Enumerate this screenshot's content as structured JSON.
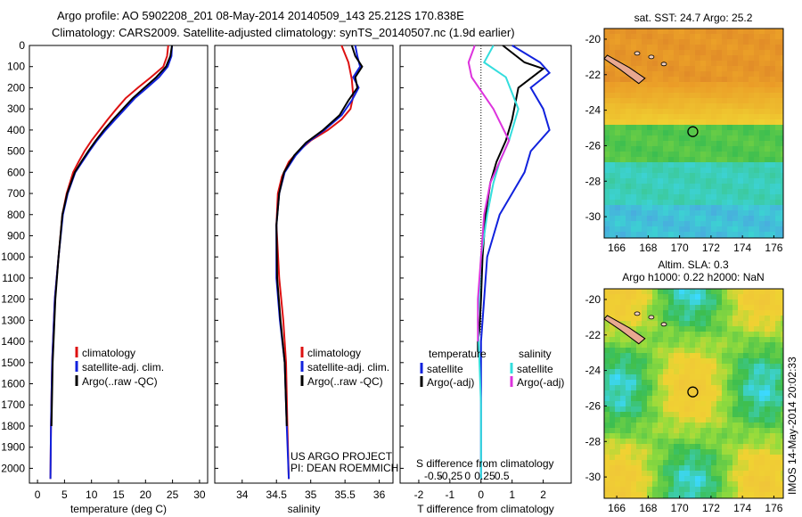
{
  "header": {
    "line1": "Argo profile: AO 5902208_201 08-May-2014 20140509_143 25.212S 170.838E",
    "line2": "Climatology: CARS2009. Satellite-adjusted climatology: synTS_20140507.nc (1.9d earlier)"
  },
  "sidebar": {
    "stamp": "IMOS 14-May-2014 20:02:33"
  },
  "colors": {
    "climatology": "#dd1111",
    "satellite": "#1122dd",
    "argo": "#000000",
    "argo_salinity": "#dd33dd",
    "satellite_salinity": "#33dddd"
  },
  "chart_data": [
    {
      "type": "line",
      "panel": "temperature",
      "xlabel": "temperature (deg C)",
      "ylabel": "",
      "xlim": [
        -1.5,
        31.5
      ],
      "ylim": [
        2070,
        0
      ],
      "xticks": [
        0,
        5,
        10,
        15,
        20,
        25,
        30
      ],
      "yticks": [
        0,
        100,
        200,
        300,
        400,
        500,
        600,
        700,
        800,
        900,
        1000,
        1100,
        1200,
        1300,
        1400,
        1500,
        1600,
        1700,
        1800,
        1900,
        2000
      ],
      "legend": [
        "climatology",
        "satellite-adj. clim.",
        "Argo(..raw -QC)"
      ],
      "legend_position": "lower-center",
      "series": [
        {
          "name": "climatology",
          "color": "#dd1111",
          "x": [
            24.2,
            24.0,
            23.3,
            21.0,
            18.6,
            16.3,
            14.6,
            13.0,
            11.5,
            10.0,
            8.7,
            7.6,
            6.6,
            5.4,
            4.6,
            3.9,
            3.2,
            2.7,
            2.5,
            2.4
          ],
          "y": [
            0,
            50,
            100,
            150,
            200,
            250,
            300,
            350,
            400,
            450,
            500,
            550,
            600,
            700,
            800,
            1000,
            1200,
            1500,
            1800,
            2050
          ]
        },
        {
          "name": "satellite-adj. clim.",
          "color": "#1122dd",
          "x": [
            24.9,
            24.8,
            24.1,
            22.5,
            20.3,
            18.0,
            16.2,
            14.4,
            12.6,
            11.0,
            9.6,
            8.3,
            7.0,
            5.6,
            4.7,
            3.9,
            3.2,
            2.7,
            2.5,
            2.4
          ],
          "y": [
            0,
            50,
            100,
            150,
            200,
            250,
            300,
            350,
            400,
            450,
            500,
            550,
            600,
            700,
            800,
            1000,
            1200,
            1500,
            1800,
            2050
          ]
        },
        {
          "name": "Argo(..raw -QC)",
          "color": "#000000",
          "x": [
            24.9,
            24.6,
            23.8,
            22.0,
            19.8,
            17.6,
            15.8,
            14.0,
            12.3,
            10.8,
            9.4,
            8.1,
            6.9,
            5.5,
            4.6,
            3.9,
            3.3,
            2.8,
            2.6
          ],
          "y": [
            0,
            50,
            100,
            150,
            200,
            250,
            300,
            350,
            400,
            450,
            500,
            550,
            600,
            700,
            800,
            1000,
            1200,
            1500,
            1800
          ]
        }
      ]
    },
    {
      "type": "line",
      "panel": "salinity",
      "xlabel": "salinity",
      "xlim": [
        33.6,
        36.2
      ],
      "ylim": [
        2070,
        0
      ],
      "xticks": [
        34,
        34.5,
        35,
        35.5,
        36
      ],
      "legend": [
        "climatology",
        "satellite-adj. clim.",
        "Argo(..raw -QC)"
      ],
      "annotation": [
        "US ARGO PROJECT",
        "PI: DEAN ROEMMICH"
      ],
      "series": [
        {
          "name": "climatology",
          "color": "#dd1111",
          "x": [
            35.45,
            35.55,
            35.6,
            35.62,
            35.58,
            35.45,
            35.25,
            35.0,
            34.82,
            34.68,
            34.58,
            34.52,
            34.5,
            34.54,
            34.6,
            34.64,
            34.66,
            34.68
          ],
          "y": [
            0,
            80,
            160,
            240,
            300,
            350,
            400,
            450,
            500,
            550,
            620,
            700,
            850,
            1100,
            1300,
            1500,
            1800,
            2050
          ]
        },
        {
          "name": "satellite-adj. clim.",
          "color": "#1122dd",
          "x": [
            35.65,
            35.68,
            35.72,
            35.62,
            35.7,
            35.6,
            35.45,
            35.2,
            34.95,
            34.78,
            34.62,
            34.54,
            34.5,
            34.5,
            34.55,
            34.62,
            34.65,
            34.68
          ],
          "y": [
            0,
            50,
            100,
            150,
            200,
            260,
            330,
            400,
            460,
            520,
            600,
            700,
            850,
            1100,
            1300,
            1500,
            1800,
            2050
          ]
        },
        {
          "name": "Argo(..raw -QC)",
          "color": "#000000",
          "x": [
            35.6,
            35.65,
            35.75,
            35.65,
            35.68,
            35.55,
            35.42,
            35.18,
            34.93,
            34.76,
            34.61,
            34.54,
            34.5,
            34.51,
            34.56,
            34.62,
            34.65
          ],
          "y": [
            0,
            50,
            100,
            150,
            200,
            260,
            330,
            400,
            460,
            520,
            600,
            700,
            850,
            1100,
            1300,
            1500,
            1800
          ]
        }
      ]
    },
    {
      "type": "line",
      "panel": "difference",
      "xlabel": "T difference from climatology",
      "xlabel_top": "S difference from climatology",
      "xlim": [
        -2.6,
        2.9
      ],
      "ylim": [
        2070,
        0
      ],
      "xticks": [
        -2,
        -1,
        0,
        1,
        2
      ],
      "s_xticks": [
        -0.5,
        -0.25,
        0,
        0.25,
        0.5
      ],
      "legend_left_title": "temperature",
      "legend_right_title": "salinity",
      "legend": [
        "satellite",
        "Argo(-adj)",
        "satellite",
        "Argo(-adj)"
      ],
      "series": [
        {
          "name": "satellite",
          "color": "#1122dd",
          "x": [
            1.0,
            1.9,
            2.2,
            1.6,
            2.0,
            2.2,
            1.6,
            1.4,
            1.0,
            0.6,
            0.4,
            0.2,
            0.1,
            0.0,
            0.0,
            0.0
          ],
          "y": [
            0,
            80,
            130,
            200,
            300,
            400,
            500,
            600,
            700,
            800,
            900,
            1000,
            1200,
            1400,
            1700,
            2050
          ]
        },
        {
          "name": "Argo(-adj)",
          "color": "#000000",
          "x": [
            0.7,
            1.4,
            2.0,
            1.2,
            1.0,
            0.8,
            0.5,
            0.3,
            0.15,
            0.05,
            0.0,
            -0.05,
            -0.1,
            -0.1
          ],
          "y": [
            0,
            80,
            110,
            200,
            350,
            450,
            550,
            650,
            800,
            1000,
            1200,
            1350,
            1400,
            1450
          ]
        },
        {
          "name": "satellite",
          "color": "#33dddd",
          "x": [
            0.4,
            0.1,
            0.8,
            1.2,
            0.9,
            0.6,
            0.4,
            0.2,
            0.0,
            -0.1,
            0.0,
            0.0
          ],
          "y": [
            0,
            80,
            150,
            300,
            450,
            550,
            650,
            800,
            1000,
            1300,
            1700,
            2050
          ]
        },
        {
          "name": "Argo(-adj)",
          "color": "#dd33dd",
          "x": [
            -0.2,
            -0.4,
            -0.3,
            0.4,
            0.9,
            0.6,
            0.3,
            0.1,
            0.0,
            -0.1,
            -0.1
          ],
          "y": [
            0,
            80,
            150,
            300,
            450,
            550,
            650,
            800,
            1000,
            1200,
            1400
          ]
        }
      ]
    },
    {
      "type": "heatmap",
      "panel": "sst_map",
      "title": "sat. SST: 24.7  Argo: 25.2",
      "xticks": [
        166,
        168,
        170,
        172,
        174,
        176
      ],
      "yticks": [
        -20,
        -22,
        -24,
        -26,
        -28,
        -30
      ],
      "marker": {
        "lon": 170.84,
        "lat": -25.21
      }
    },
    {
      "type": "heatmap",
      "panel": "sla_map",
      "title": "Altim. SLA: 0.3",
      "subtitle": "Argo h1000: 0.22  h2000: NaN",
      "xticks": [
        166,
        168,
        170,
        172,
        174,
        176
      ],
      "yticks": [
        -20,
        -22,
        -24,
        -26,
        -28,
        -30
      ],
      "marker": {
        "lon": 170.84,
        "lat": -25.21
      }
    }
  ]
}
